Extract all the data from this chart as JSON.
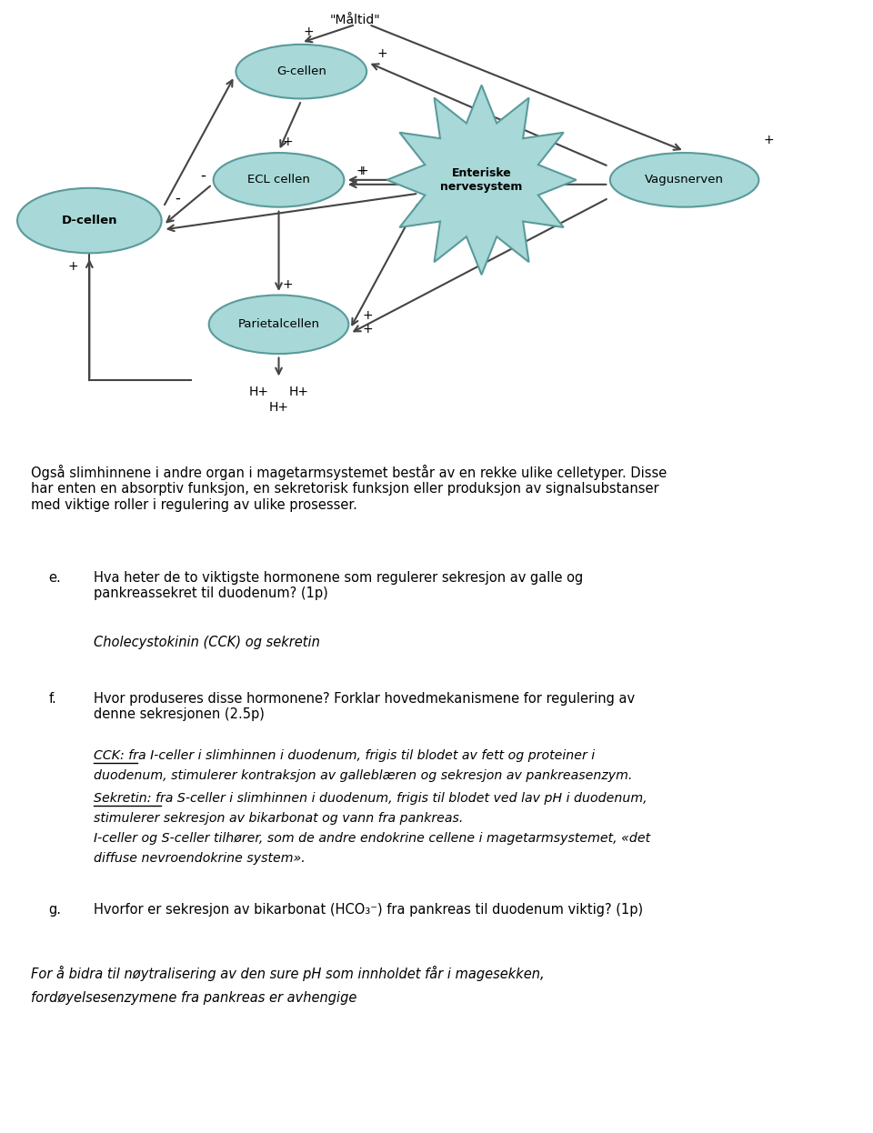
{
  "background_color": "#ffffff",
  "cell_color": "#a8d8d8",
  "cell_edge_color": "#5a9a9a",
  "text_block1": "Også slimhinnene i andre organ i magetarmsystemet består av en rekke ulike celletyper. Disse\nhar enten en absorptiv funksjon, en sekretorisk funksjon eller produksjon av signalsubstanser\nmed viktige roller i regulering av ulike prosesser.",
  "text_e_label": "e.",
  "text_e": "Hva heter de to viktigste hormonene som regulerer sekresjon av galle og\npankreassekret til duodenum? (1p)",
  "text_e_answer": "Cholecystokinin (CCK) og sekretin",
  "text_f_label": "f.",
  "text_f": "Hvor produseres disse hormonene? Forklar hovedmekanismene for regulering av\ndenne sekresjonen (2.5p)",
  "text_f_answer_line1": "CCK: fra I-celler i slimhinnen i duodenum, frigis til blodet av fett og proteiner i",
  "text_f_answer_line2": "duodenum, stimulerer kontraksjon av galleblæren og sekresjon av pankreasenzym.",
  "text_f_answer_line3": "Sekretin: fra S-celler i slimhinnen i duodenum, frigis til blodet ved lav pH i duodenum,",
  "text_f_answer_line4": "stimulerer sekresjon av bikarbonat og vann fra pankreas.",
  "text_f_answer_line5": "I-celler og S-celler tilhører, som de andre endokrine cellene i magetarmsystemet, «det",
  "text_f_answer_line6": "diffuse nevroendokrine system».",
  "text_g_label": "g.",
  "text_g": "Hvorfor er sekresjon av bikarbonat (HCO₃⁻) fra pankreas til duodenum viktig? (1p)",
  "text_g_answer_line1": "For å bidra til nøytralisering av den sure pH som innholdet får i magesekken,",
  "text_g_answer_line2": "fordøyelsesenzymene fra pankreas er avhengige"
}
